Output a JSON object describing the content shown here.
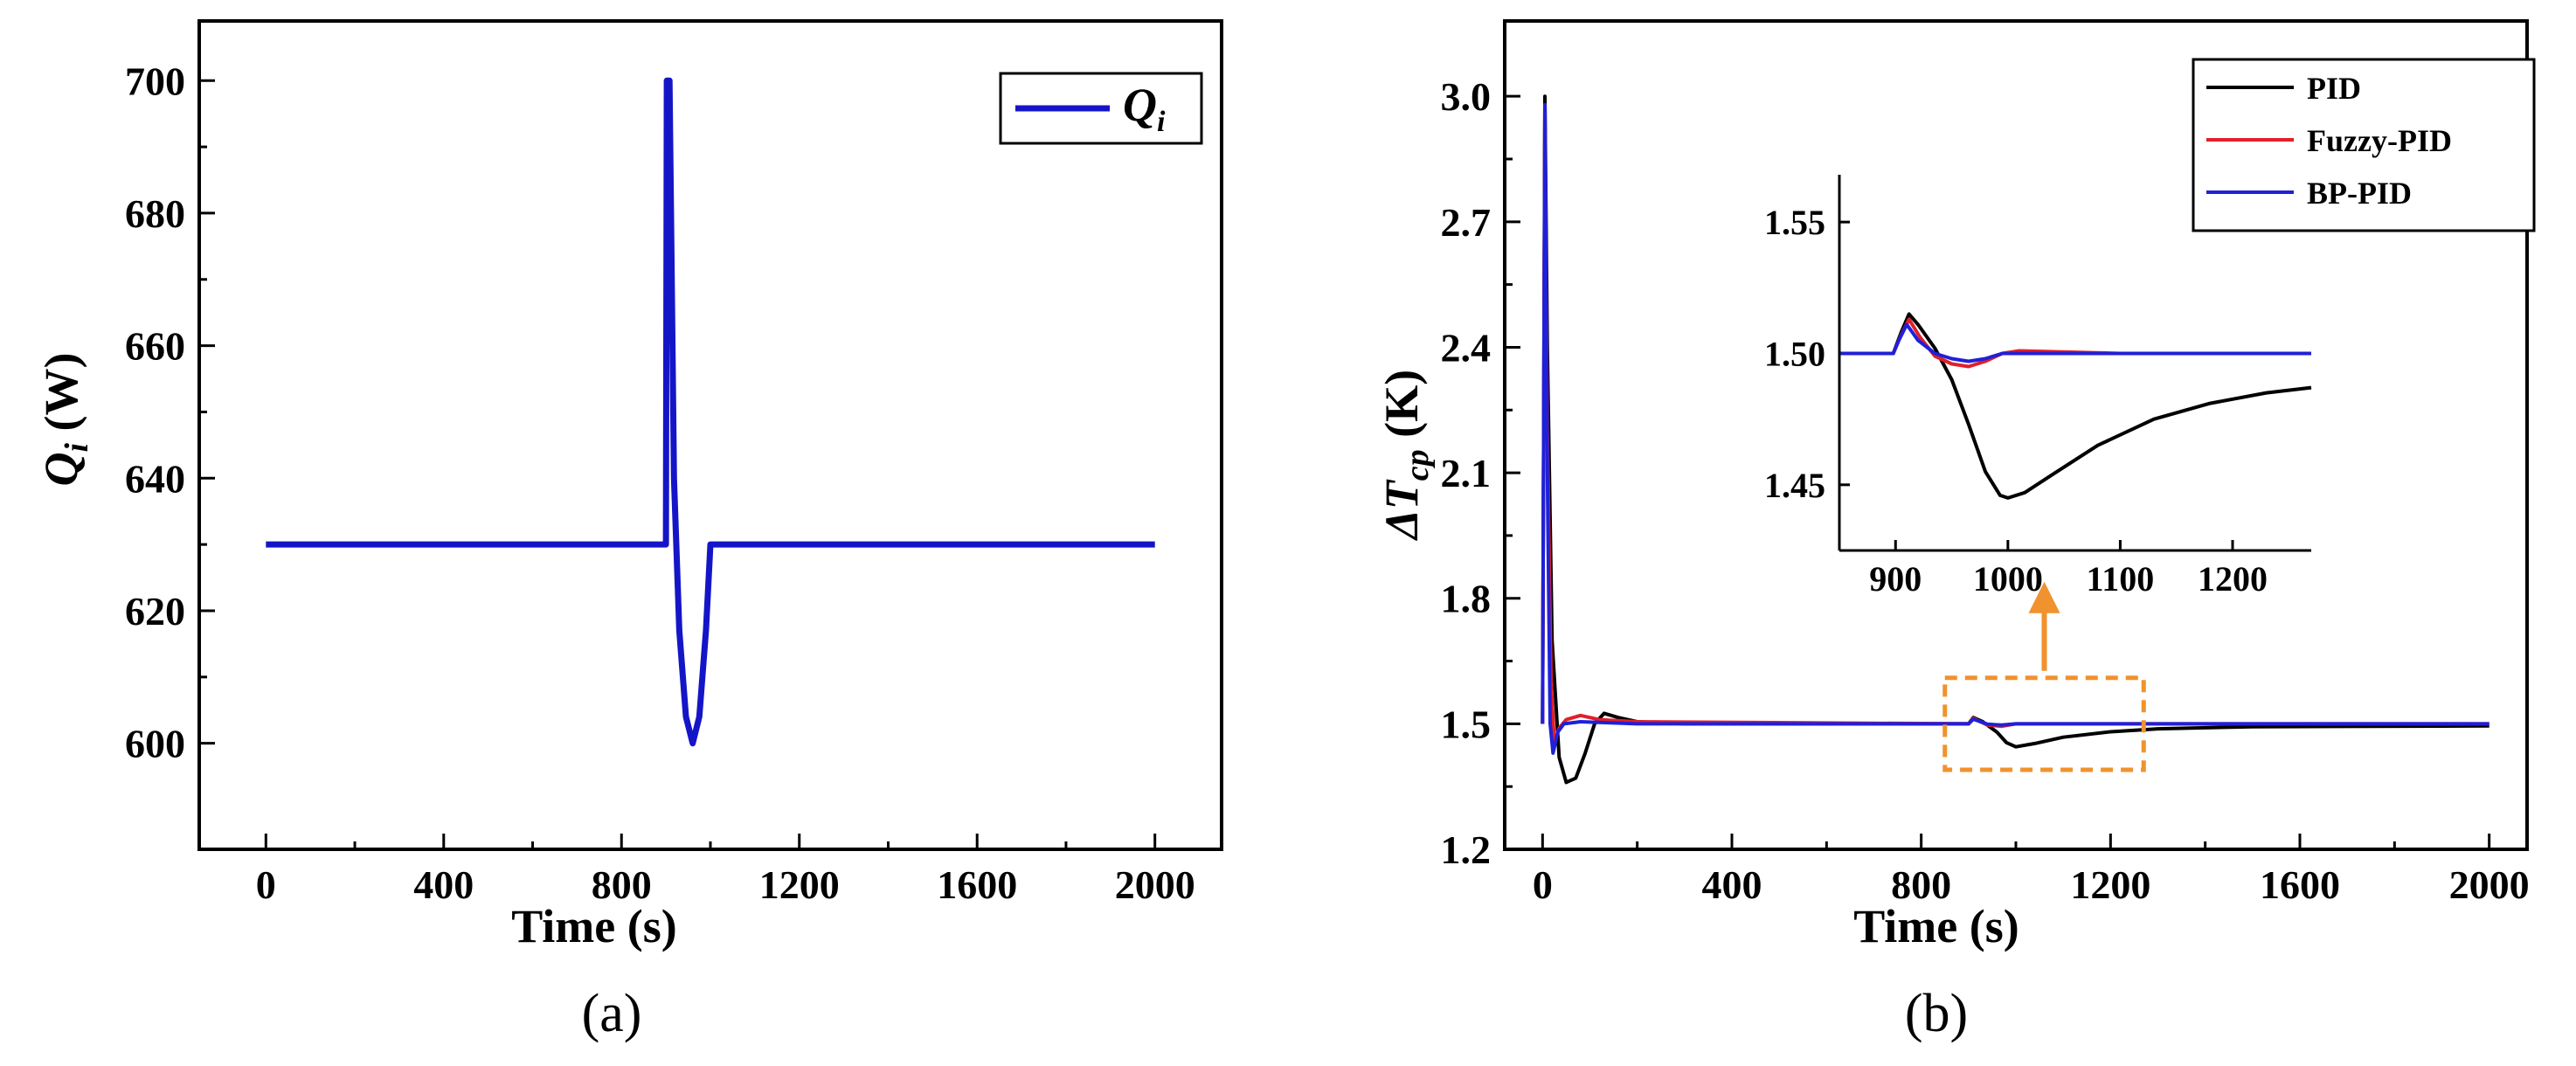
{
  "chart_data": [
    {
      "type": "line",
      "panel_label": "(a)",
      "xlabel": "Time (s)",
      "ylabel": "Q_i (W)",
      "ylabel_main": "Q",
      "ylabel_sub": "i",
      "ylabel_unit": " (W)",
      "xlim": [
        -150,
        2150
      ],
      "ylim": [
        584,
        709
      ],
      "xticks": [
        0,
        400,
        800,
        1200,
        1600,
        2000
      ],
      "yticks": [
        600,
        620,
        640,
        660,
        680,
        700
      ],
      "legend": {
        "position": "top-right",
        "label_main": "Q",
        "label_sub": "i"
      },
      "series": [
        {
          "name": "Q_i",
          "color": "#1515c8",
          "points": [
            [
              0,
              630
            ],
            [
              900,
              630
            ],
            [
              902,
              700
            ],
            [
              908,
              700
            ],
            [
              918,
              640
            ],
            [
              930,
              617
            ],
            [
              945,
              604
            ],
            [
              960,
              600
            ],
            [
              975,
              604
            ],
            [
              990,
              617
            ],
            [
              1000,
              630
            ],
            [
              2000,
              630
            ]
          ]
        }
      ]
    },
    {
      "type": "line",
      "panel_label": "(b)",
      "xlabel": "Time (s)",
      "ylabel": "ΔT_cp (K)",
      "ylabel_main": "ΔT",
      "ylabel_sub": "cp",
      "ylabel_unit": " (K)",
      "xlim": [
        -80,
        2080
      ],
      "ylim": [
        1.2,
        3.18
      ],
      "xticks": [
        0,
        400,
        800,
        1200,
        1600,
        2000
      ],
      "yticks": [
        "1.2",
        "1.5",
        "1.8",
        "2.1",
        "2.4",
        "2.7",
        "3.0"
      ],
      "legend": {
        "position": "top-right",
        "labels": [
          "PID",
          "Fuzzy-PID",
          "BP-PID"
        ]
      },
      "series": [
        {
          "name": "PID",
          "color": "#000000",
          "points": [
            [
              0,
              1.5
            ],
            [
              5,
              3.0
            ],
            [
              10,
              2.4
            ],
            [
              20,
              1.7
            ],
            [
              35,
              1.42
            ],
            [
              50,
              1.36
            ],
            [
              70,
              1.37
            ],
            [
              90,
              1.43
            ],
            [
              110,
              1.5
            ],
            [
              130,
              1.525
            ],
            [
              160,
              1.515
            ],
            [
              200,
              1.505
            ],
            [
              300,
              1.5
            ],
            [
              900,
              1.5
            ],
            [
              910,
              1.515
            ],
            [
              930,
              1.505
            ],
            [
              960,
              1.48
            ],
            [
              980,
              1.455
            ],
            [
              1000,
              1.445
            ],
            [
              1040,
              1.453
            ],
            [
              1100,
              1.468
            ],
            [
              1200,
              1.481
            ],
            [
              1300,
              1.488
            ],
            [
              1500,
              1.493
            ],
            [
              2000,
              1.495
            ]
          ]
        },
        {
          "name": "Fuzzy-PID",
          "color": "#e0202a",
          "points": [
            [
              0,
              1.5
            ],
            [
              5,
              2.95
            ],
            [
              10,
              2.2
            ],
            [
              18,
              1.6
            ],
            [
              25,
              1.45
            ],
            [
              35,
              1.49
            ],
            [
              50,
              1.51
            ],
            [
              80,
              1.52
            ],
            [
              120,
              1.51
            ],
            [
              200,
              1.505
            ],
            [
              900,
              1.5
            ],
            [
              910,
              1.513
            ],
            [
              940,
              1.497
            ],
            [
              970,
              1.494
            ],
            [
              1000,
              1.5
            ],
            [
              2000,
              1.5
            ]
          ]
        },
        {
          "name": "BP-PID",
          "color": "#2020d8",
          "points": [
            [
              0,
              1.5
            ],
            [
              5,
              2.98
            ],
            [
              10,
              2.1
            ],
            [
              16,
              1.5
            ],
            [
              22,
              1.43
            ],
            [
              32,
              1.48
            ],
            [
              45,
              1.5
            ],
            [
              80,
              1.505
            ],
            [
              200,
              1.5
            ],
            [
              900,
              1.5
            ],
            [
              910,
              1.511
            ],
            [
              940,
              1.499
            ],
            [
              970,
              1.497
            ],
            [
              1000,
              1.5
            ],
            [
              2000,
              1.5
            ]
          ]
        }
      ],
      "inset": {
        "xlim": [
          850,
          1270
        ],
        "ylim": [
          1.425,
          1.568
        ],
        "xticks": [
          900,
          1000,
          1100,
          1200
        ],
        "yticks": [
          "1.45",
          "1.50",
          "1.55"
        ],
        "zoom_box_x": [
          850,
          1270
        ],
        "zoom_box_y": [
          1.39,
          1.61
        ],
        "zoom_box_color": "#f0922e",
        "series": [
          {
            "name": "PID",
            "color": "#000000",
            "points": [
              [
                850,
                1.5
              ],
              [
                898,
                1.5
              ],
              [
                905,
                1.508
              ],
              [
                912,
                1.515
              ],
              [
                920,
                1.511
              ],
              [
                935,
                1.502
              ],
              [
                950,
                1.49
              ],
              [
                965,
                1.473
              ],
              [
                980,
                1.455
              ],
              [
                993,
                1.446
              ],
              [
                1000,
                1.445
              ],
              [
                1015,
                1.447
              ],
              [
                1040,
                1.454
              ],
              [
                1080,
                1.465
              ],
              [
                1130,
                1.475
              ],
              [
                1180,
                1.481
              ],
              [
                1230,
                1.485
              ],
              [
                1270,
                1.487
              ]
            ]
          },
          {
            "name": "Fuzzy-PID",
            "color": "#e0202a",
            "points": [
              [
                850,
                1.5
              ],
              [
                898,
                1.5
              ],
              [
                905,
                1.507
              ],
              [
                912,
                1.513
              ],
              [
                922,
                1.506
              ],
              [
                935,
                1.499
              ],
              [
                950,
                1.496
              ],
              [
                965,
                1.495
              ],
              [
                980,
                1.497
              ],
              [
                995,
                1.5
              ],
              [
                1010,
                1.501
              ],
              [
                1100,
                1.5
              ],
              [
                1270,
                1.5
              ]
            ]
          },
          {
            "name": "BP-PID",
            "color": "#2020d8",
            "points": [
              [
                850,
                1.5
              ],
              [
                898,
                1.5
              ],
              [
                903,
                1.505
              ],
              [
                910,
                1.511
              ],
              [
                920,
                1.505
              ],
              [
                935,
                1.5
              ],
              [
                950,
                1.498
              ],
              [
                965,
                1.497
              ],
              [
                980,
                1.498
              ],
              [
                995,
                1.5
              ],
              [
                1100,
                1.5
              ],
              [
                1270,
                1.5
              ]
            ]
          }
        ]
      }
    }
  ]
}
